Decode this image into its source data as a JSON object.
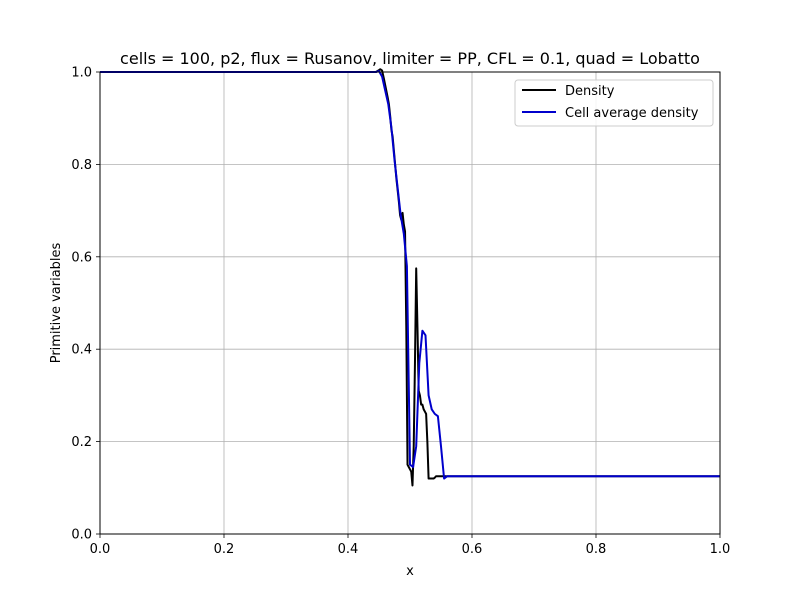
{
  "chart_data": {
    "type": "line",
    "title": "cells = 100, p2, flux = Rusanov, limiter = PP, CFL = 0.1, quad = Lobatto",
    "xlabel": "x",
    "ylabel": "Primitive variables",
    "xlim": [
      0.0,
      1.0
    ],
    "ylim": [
      0.0,
      1.0
    ],
    "xticks": [
      "0.0",
      "0.2",
      "0.4",
      "0.6",
      "0.8",
      "1.0"
    ],
    "yticks": [
      "0.0",
      "0.2",
      "0.4",
      "0.6",
      "0.8",
      "1.0"
    ],
    "grid": true,
    "legend_position": "top-right",
    "series": [
      {
        "name": "Density",
        "color": "#000000",
        "x": [
          0.0,
          0.445,
          0.45,
          0.452,
          0.455,
          0.458,
          0.461,
          0.464,
          0.466,
          0.468,
          0.47,
          0.472,
          0.474,
          0.476,
          0.478,
          0.48,
          0.482,
          0.484,
          0.486,
          0.488,
          0.49,
          0.492,
          0.494,
          0.496,
          0.498,
          0.5,
          0.502,
          0.504,
          0.506,
          0.508,
          0.51,
          0.512,
          0.514,
          0.516,
          0.518,
          0.52,
          0.522,
          0.524,
          0.526,
          0.528,
          0.53,
          0.532,
          0.534,
          0.536,
          0.538,
          0.54,
          0.542,
          0.544,
          0.546,
          0.548,
          0.55,
          0.552,
          0.554,
          0.556,
          0.558,
          0.56,
          0.563,
          0.566,
          1.0
        ],
        "y": [
          1.0,
          1.0,
          1.004,
          1.006,
          1.003,
          0.985,
          0.965,
          0.945,
          0.93,
          0.905,
          0.875,
          0.86,
          0.83,
          0.8,
          0.77,
          0.745,
          0.72,
          0.69,
          0.68,
          0.695,
          0.67,
          0.655,
          0.45,
          0.15,
          0.145,
          0.14,
          0.135,
          0.105,
          0.19,
          0.37,
          0.575,
          0.45,
          0.31,
          0.3,
          0.28,
          0.28,
          0.27,
          0.265,
          0.26,
          0.2,
          0.12,
          0.12,
          0.12,
          0.12,
          0.12,
          0.122,
          0.125,
          0.125,
          0.125,
          0.125,
          0.125,
          0.125,
          0.125,
          0.125,
          0.125,
          0.125,
          0.125,
          0.125,
          0.125
        ]
      },
      {
        "name": "Cell average density",
        "color": "#0000cc",
        "x": [
          0.0,
          0.445,
          0.45,
          0.455,
          0.46,
          0.465,
          0.47,
          0.475,
          0.48,
          0.485,
          0.49,
          0.495,
          0.5,
          0.505,
          0.51,
          0.515,
          0.52,
          0.525,
          0.53,
          0.535,
          0.54,
          0.545,
          0.55,
          0.555,
          0.56,
          0.565,
          1.0
        ],
        "y": [
          1.0,
          1.0,
          1.002,
          0.99,
          0.96,
          0.93,
          0.88,
          0.81,
          0.75,
          0.69,
          0.65,
          0.58,
          0.15,
          0.145,
          0.19,
          0.37,
          0.44,
          0.43,
          0.3,
          0.27,
          0.26,
          0.255,
          0.19,
          0.12,
          0.125,
          0.125,
          0.125
        ]
      }
    ]
  }
}
